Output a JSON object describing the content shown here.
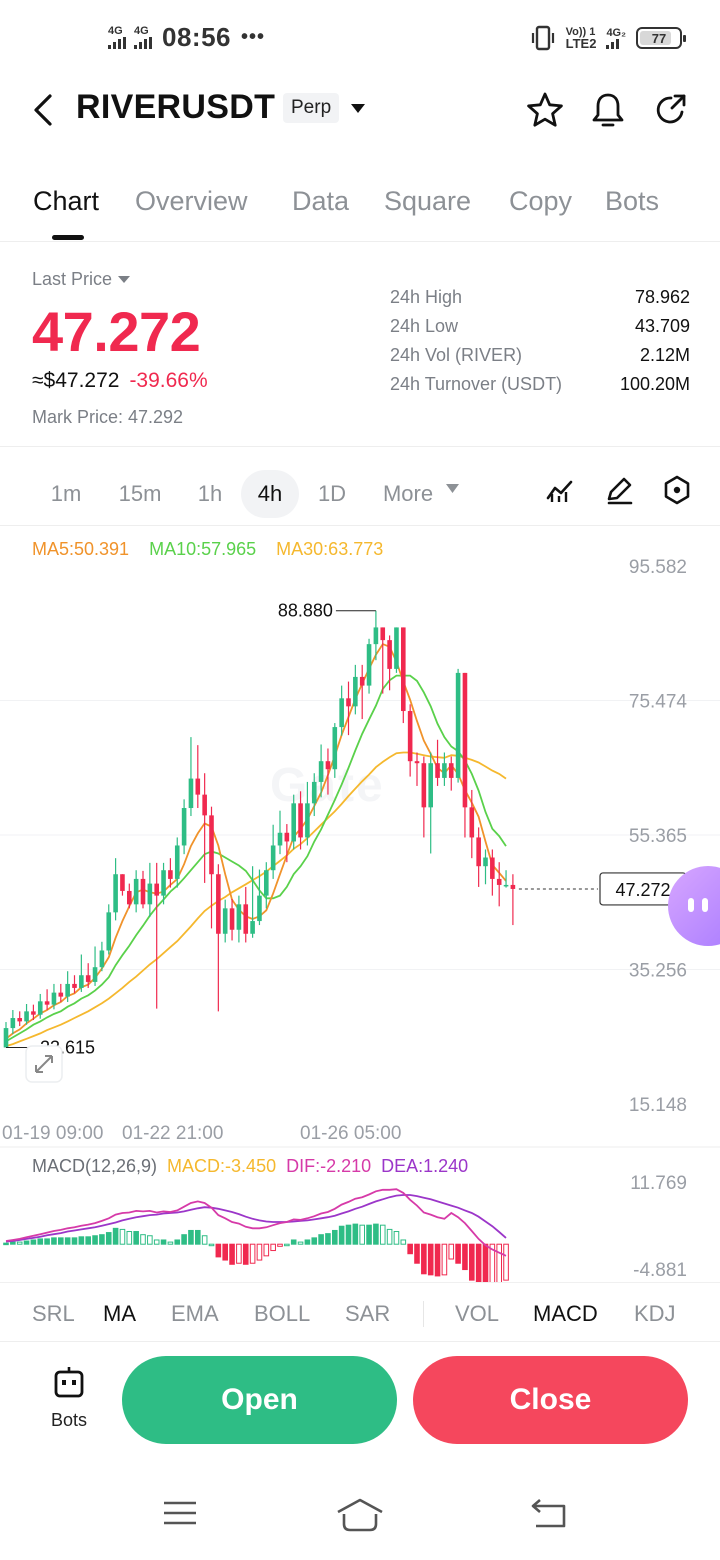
{
  "status_bar": {
    "signal_1": "4G",
    "signal_2": "4G",
    "time": "08:56",
    "more": "•••",
    "volte": "Vo)) 1",
    "lte": "LTE2",
    "net2": "4G₂",
    "battery": "77",
    "icons": [
      "signal-icon",
      "vibrate-icon",
      "battery-icon"
    ]
  },
  "header": {
    "symbol": "RIVERUSDT",
    "badge": "Perp",
    "icons": [
      "back-arrow-icon",
      "star-icon",
      "bell-icon",
      "share-icon"
    ]
  },
  "tabs": [
    {
      "label": "Chart",
      "active": true
    },
    {
      "label": "Overview",
      "active": false
    },
    {
      "label": "Data",
      "active": false
    },
    {
      "label": "Square",
      "active": false
    },
    {
      "label": "Copy",
      "active": false
    },
    {
      "label": "Bots",
      "active": false
    }
  ],
  "price": {
    "last_price_label": "Last Price",
    "last_price": "47.272",
    "usd_value": "≈$47.272",
    "change": "-39.66%",
    "mark_price": "Mark Price:  47.292",
    "stats": [
      {
        "label": "24h  High",
        "value": "78.962"
      },
      {
        "label": "24h  Low",
        "value": "43.709"
      },
      {
        "label": "24h  Vol (RIVER)",
        "value": "2.12M"
      },
      {
        "label": "24h  Turnover (USDT)",
        "value": "100.20M"
      }
    ],
    "up_color": "#2ebd85",
    "down_color": "#f0294f"
  },
  "intervals": {
    "items": [
      "1m",
      "15m",
      "1h",
      "4h",
      "1D"
    ],
    "active": "4h",
    "more": "More",
    "tools": [
      "indicator-icon",
      "draw-pen-icon",
      "settings-hex-icon"
    ]
  },
  "ma_legend": {
    "ma5": "MA5:50.391",
    "ma10": "MA10:57.965",
    "ma30": "MA30:63.773",
    "ma5_color": "#f0932b",
    "ma10_color": "#5ad14b",
    "ma30_color": "#f5b82e"
  },
  "watermark": "Gate",
  "macd_legend": {
    "title": "MACD(12,26,9)",
    "macd": "MACD:-3.450",
    "dif": "DIF:-2.210",
    "dea": "DEA:1.240"
  },
  "chart_data": {
    "type": "candlestick",
    "price_axis": [
      "95.582",
      "75.474",
      "55.365",
      "35.256",
      "15.148"
    ],
    "price_range": [
      15.148,
      95.582
    ],
    "time_labels": [
      "01-19 09:00",
      "01-22 21:00",
      "01-26 05:00"
    ],
    "high_marker": "88.880",
    "low_marker": "23.615",
    "current_price_tag": "47.272",
    "candles": [
      [
        23.6,
        26.5,
        23.6,
        27.4
      ],
      [
        26.5,
        28.0,
        25.6,
        29.2
      ],
      [
        28.0,
        27.5,
        26.8,
        29.0
      ],
      [
        27.5,
        29.0,
        27.0,
        30.1
      ],
      [
        29.0,
        28.5,
        27.7,
        30.0
      ],
      [
        28.5,
        30.5,
        27.9,
        31.6
      ],
      [
        30.5,
        30.0,
        29.2,
        32.3
      ],
      [
        30.0,
        31.8,
        29.3,
        33.1
      ],
      [
        31.8,
        31.2,
        30.4,
        33.1
      ],
      [
        31.2,
        33.1,
        30.4,
        35.0
      ],
      [
        33.1,
        32.5,
        31.7,
        34.4
      ],
      [
        32.5,
        34.4,
        31.9,
        37.5
      ],
      [
        34.4,
        33.4,
        32.5,
        36.2
      ],
      [
        33.4,
        35.6,
        32.8,
        38.7
      ],
      [
        35.6,
        38.1,
        35.0,
        39.4
      ],
      [
        38.1,
        43.8,
        37.5,
        45.0
      ],
      [
        43.8,
        49.5,
        42.6,
        51.9
      ],
      [
        49.5,
        47.0,
        46.3,
        49.5
      ],
      [
        47.0,
        45.0,
        44.4,
        48.1
      ],
      [
        45.0,
        48.8,
        43.8,
        50.1
      ],
      [
        48.8,
        45.0,
        44.4,
        50.0
      ],
      [
        45.0,
        48.1,
        43.1,
        51.2
      ],
      [
        48.1,
        46.3,
        29.4,
        51.2
      ],
      [
        46.3,
        50.1,
        45.0,
        51.2
      ],
      [
        50.1,
        48.8,
        47.5,
        51.9
      ],
      [
        48.8,
        53.8,
        47.5,
        55.0
      ],
      [
        53.8,
        59.4,
        52.5,
        60.7
      ],
      [
        59.4,
        63.8,
        58.2,
        70.0
      ],
      [
        63.8,
        61.4,
        59.4,
        68.8
      ],
      [
        61.4,
        58.3,
        48.2,
        64.6
      ],
      [
        58.3,
        49.5,
        41.4,
        59.6
      ],
      [
        49.5,
        40.6,
        29.0,
        51.0
      ],
      [
        40.6,
        44.4,
        39.3,
        45.7
      ],
      [
        44.4,
        41.2,
        39.6,
        45.8
      ],
      [
        41.2,
        45.0,
        39.3,
        46.3
      ],
      [
        45.0,
        40.6,
        39.3,
        47.6
      ],
      [
        40.6,
        42.5,
        40.0,
        50.7
      ],
      [
        42.5,
        46.3,
        41.9,
        50.2
      ],
      [
        46.3,
        50.1,
        44.4,
        51.3
      ],
      [
        50.1,
        53.8,
        48.8,
        56.9
      ],
      [
        53.8,
        55.7,
        52.5,
        59.0
      ],
      [
        55.7,
        54.4,
        51.3,
        57.0
      ],
      [
        54.4,
        60.1,
        53.2,
        61.4
      ],
      [
        60.1,
        55.0,
        53.2,
        61.9
      ],
      [
        55.0,
        60.1,
        53.8,
        63.3
      ],
      [
        60.1,
        63.3,
        58.2,
        64.6
      ],
      [
        63.3,
        66.4,
        61.0,
        68.9
      ],
      [
        66.4,
        65.2,
        61.4,
        68.3
      ],
      [
        65.2,
        71.5,
        63.9,
        72.1
      ],
      [
        71.5,
        75.8,
        70.2,
        77.7
      ],
      [
        75.8,
        74.6,
        70.3,
        78.3
      ],
      [
        74.6,
        79.0,
        73.4,
        80.8
      ],
      [
        79.0,
        77.7,
        72.7,
        80.8
      ],
      [
        77.7,
        83.9,
        76.5,
        84.7
      ],
      [
        83.9,
        86.4,
        81.5,
        88.9
      ],
      [
        86.4,
        84.5,
        76.5,
        86.4
      ],
      [
        84.5,
        80.2,
        77.0,
        85.2
      ],
      [
        80.2,
        86.4,
        79.6,
        86.4
      ],
      [
        86.4,
        73.9,
        72.1,
        86.4
      ],
      [
        73.9,
        66.4,
        64.1,
        74.9
      ],
      [
        66.4,
        66.1,
        62.7,
        67.7
      ],
      [
        66.1,
        59.5,
        55.0,
        67.1
      ],
      [
        59.5,
        66.1,
        52.6,
        67.7
      ],
      [
        66.1,
        63.9,
        62.7,
        69.6
      ],
      [
        63.9,
        66.1,
        62.7,
        67.7
      ],
      [
        66.1,
        63.9,
        62.0,
        67.1
      ],
      [
        63.9,
        79.6,
        63.2,
        80.2
      ],
      [
        79.6,
        59.5,
        55.0,
        79.6
      ],
      [
        59.5,
        55.0,
        51.9,
        62.1
      ],
      [
        55.0,
        50.7,
        47.6,
        56.5
      ],
      [
        50.7,
        52.0,
        48.0,
        53.2
      ],
      [
        52.0,
        48.8,
        46.3,
        53.2
      ],
      [
        48.8,
        47.9,
        44.7,
        51.3
      ],
      [
        47.9,
        47.9,
        47.5,
        50.1
      ],
      [
        47.9,
        47.3,
        41.9,
        49.5
      ]
    ],
    "ma5": [
      24.9,
      25.7,
      26.3,
      27.2,
      27.9,
      28.7,
      29.2,
      29.9,
      30.4,
      31.3,
      31.7,
      32.6,
      33.0,
      34.0,
      35.4,
      37.1,
      40.0,
      42.5,
      44.7,
      46.8,
      47.2,
      46.8,
      46.6,
      46.9,
      47.9,
      48.8,
      51.0,
      53.7,
      55.6,
      57.1,
      56.6,
      53.8,
      49.5,
      45.7,
      44.2,
      43.2,
      42.8,
      43.2,
      44.1,
      46.6,
      49.5,
      52.3,
      55.1,
      56.3,
      57.7,
      59.7,
      61.7,
      64.3,
      67.2,
      70.3,
      73.0,
      75.7,
      78.0,
      80.2,
      82.3,
      83.9,
      83.5,
      81.3,
      78.3,
      75.6,
      72.4,
      69.5,
      67.5,
      65.4,
      64.6,
      65.8,
      64.5,
      62.1,
      60.2,
      58.1,
      54.4,
      50.9,
      49.7,
      48.5
    ],
    "ma10": [
      24.5,
      25.1,
      25.7,
      26.3,
      27.0,
      27.5,
      28.1,
      28.6,
      29.0,
      29.7,
      30.2,
      30.9,
      31.4,
      32.1,
      33.0,
      34.1,
      35.9,
      37.4,
      38.8,
      40.4,
      41.8,
      43.3,
      44.6,
      45.7,
      46.9,
      47.8,
      48.9,
      50.1,
      51.3,
      52.5,
      52.9,
      52.6,
      52.0,
      51.4,
      50.8,
      50.0,
      48.6,
      47.1,
      45.9,
      45.9,
      46.3,
      47.6,
      49.5,
      50.7,
      52.2,
      54.4,
      56.2,
      58.4,
      60.6,
      62.9,
      65.4,
      68.0,
      70.5,
      72.6,
      74.7,
      77.2,
      78.5,
      79.2,
      79.2,
      79.2,
      78.4,
      76.7,
      74.6,
      72.0,
      70.0,
      68.6,
      67.9,
      66.5,
      64.5,
      62.0,
      58.8,
      56.3,
      55.2,
      53.7
    ],
    "ma30": [
      23.8,
      24.1,
      24.5,
      24.9,
      25.3,
      25.7,
      26.2,
      26.6,
      27.0,
      27.5,
      28.0,
      28.5,
      29.0,
      29.6,
      30.2,
      30.9,
      31.7,
      32.5,
      33.4,
      34.2,
      35.1,
      36.0,
      36.8,
      37.7,
      38.6,
      39.5,
      40.6,
      41.7,
      42.9,
      44.0,
      44.8,
      45.5,
      46.1,
      46.8,
      47.4,
      48.0,
      48.6,
      49.2,
      49.9,
      50.7,
      51.5,
      52.3,
      53.3,
      54.0,
      54.9,
      55.9,
      56.9,
      57.9,
      58.9,
      60.0,
      61.2,
      62.3,
      63.4,
      64.4,
      65.5,
      66.3,
      67.0,
      67.6,
      67.7,
      67.7,
      67.5,
      67.3,
      67.1,
      67.0,
      66.9,
      67.3,
      67.2,
      66.9,
      66.6,
      66.2,
      65.6,
      65.0,
      64.5,
      63.8
    ],
    "macd_axis": [
      "11.769",
      "-4.881"
    ],
    "macd_range": [
      -4.881,
      11.769
    ],
    "dif": [
      0.6,
      0.8,
      1.0,
      1.3,
      1.6,
      1.9,
      2.2,
      2.5,
      2.7,
      3.0,
      3.2,
      3.5,
      3.7,
      4.0,
      4.4,
      4.9,
      5.6,
      5.9,
      6.0,
      6.3,
      6.2,
      6.3,
      6.0,
      6.2,
      6.1,
      6.4,
      7.1,
      7.8,
      8.1,
      7.8,
      6.9,
      5.5,
      4.9,
      4.2,
      3.9,
      3.3,
      3.0,
      3.0,
      3.2,
      3.6,
      4.0,
      4.2,
      4.7,
      4.6,
      4.9,
      5.3,
      5.8,
      6.1,
      6.7,
      7.5,
      8.0,
      8.6,
      8.9,
      9.4,
      10.0,
      10.3,
      10.3,
      10.4,
      9.7,
      8.4,
      7.3,
      6.0,
      5.6,
      5.1,
      4.8,
      5.9,
      5.1,
      4.0,
      2.5,
      1.0,
      -0.2,
      -1.0,
      -1.6,
      -2.2
    ],
    "dea": [
      0.5,
      0.6,
      0.8,
      1.0,
      1.2,
      1.4,
      1.7,
      1.9,
      2.1,
      2.4,
      2.6,
      2.8,
      3.0,
      3.2,
      3.5,
      3.8,
      4.1,
      4.5,
      4.8,
      5.1,
      5.3,
      5.5,
      5.6,
      5.8,
      5.9,
      6.0,
      6.2,
      6.5,
      6.8,
      7.0,
      6.9,
      6.7,
      6.4,
      6.1,
      5.7,
      5.2,
      4.8,
      4.5,
      4.3,
      4.2,
      4.2,
      4.2,
      4.3,
      4.4,
      4.5,
      4.7,
      4.9,
      5.1,
      5.4,
      5.8,
      6.2,
      6.7,
      7.1,
      7.6,
      8.1,
      8.5,
      8.9,
      9.2,
      9.3,
      9.3,
      9.1,
      8.8,
      8.5,
      8.1,
      7.7,
      7.3,
      6.9,
      6.4,
      5.9,
      5.2,
      4.3,
      3.4,
      2.3,
      1.2
    ]
  },
  "indicators": {
    "main": [
      {
        "label": "SRL",
        "active": false
      },
      {
        "label": "MA",
        "active": true
      },
      {
        "label": "EMA",
        "active": false
      },
      {
        "label": "BOLL",
        "active": false
      },
      {
        "label": "SAR",
        "active": false
      }
    ],
    "sub": [
      {
        "label": "VOL",
        "active": false
      },
      {
        "label": "MACD",
        "active": true
      },
      {
        "label": "KDJ",
        "active": false
      }
    ]
  },
  "actions": {
    "bots_label": "Bots",
    "open_label": "Open",
    "close_label": "Close"
  },
  "nav": {
    "icons": [
      "menu-icon",
      "home-icon",
      "back-icon"
    ]
  }
}
